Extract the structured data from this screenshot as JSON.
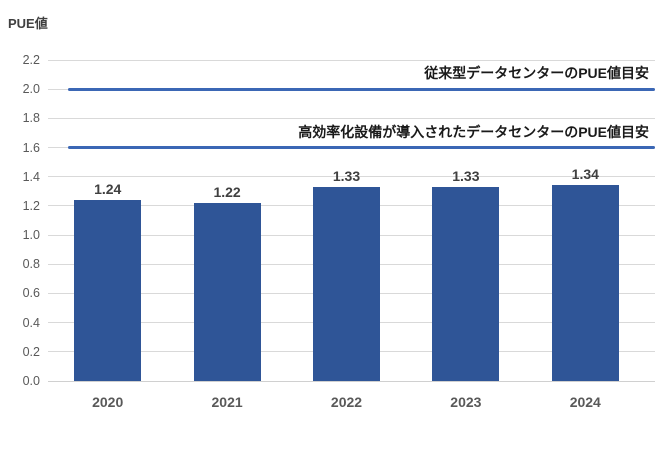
{
  "chart_data": {
    "type": "bar",
    "title": "",
    "ylabel": "PUE値",
    "xlabel": "",
    "categories": [
      "2020",
      "2021",
      "2022",
      "2023",
      "2024"
    ],
    "values": [
      1.24,
      1.22,
      1.33,
      1.33,
      1.34
    ],
    "value_labels": [
      "1.24",
      "1.22",
      "1.33",
      "1.33",
      "1.34"
    ],
    "ylim": [
      0,
      2.2
    ],
    "ytick_step": 0.2,
    "grid": true,
    "legend": "none",
    "reference_lines": [
      {
        "value": 2.0,
        "label": "従来型データセンターのPUE値目安"
      },
      {
        "value": 1.6,
        "label": "高効率化設備が導入されたデータセンターのPUE値目安"
      }
    ]
  },
  "colors": {
    "bar": "#2F5597",
    "reference_line": "#3B67B5",
    "grid": "#D9D9D9",
    "axis_text": "#595959",
    "value_label": "#404040",
    "annotation_text": "#1A1A1A",
    "background": "#FFFFFF"
  }
}
